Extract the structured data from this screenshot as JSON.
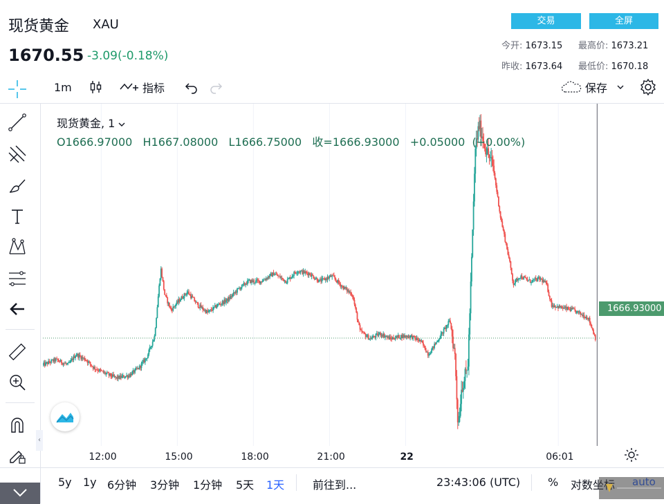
{
  "header": {
    "title": "现货黄金",
    "symbol": "XAU",
    "price": "1670.55",
    "change": "-3.09(-0.18%)",
    "trade_button": "交易",
    "fullscreen_button": "全屏",
    "stats": {
      "open_label": "今开:",
      "open_value": "1673.15",
      "high_label": "最高价:",
      "high_value": "1673.21",
      "prev_close_label": "昨收:",
      "prev_close_value": "1673.64",
      "low_label": "最低价:",
      "low_value": "1670.18"
    }
  },
  "toolbar": {
    "interval": "1m",
    "indicators_label": "指标",
    "save_label": "保存"
  },
  "legend": {
    "name": "现货黄金, 1",
    "ohlc": "O1666.97000   H1667.08000   L1666.75000   收=1666.93000   +0.05000  (+0.00%)"
  },
  "chart_data": {
    "type": "candlestick",
    "last_price_label": "1666.93000",
    "last_price": 1666.93,
    "x_ticks": [
      "12:00",
      "15:00",
      "18:00",
      "21:00",
      "22",
      "06:01"
    ],
    "x_tick_positions_hours": [
      12,
      15,
      18,
      21,
      24,
      30.02
    ],
    "x_range_hours": [
      9.7,
      31.65
    ],
    "y_range": [
      1662.8,
      1675.9
    ],
    "grid": true,
    "crosshair_hour": 31.55,
    "price_path": [
      [
        9.7,
        1665.9
      ],
      [
        10.2,
        1666.1
      ],
      [
        10.7,
        1665.9
      ],
      [
        11.0,
        1666.3
      ],
      [
        11.4,
        1666.1
      ],
      [
        11.7,
        1665.8
      ],
      [
        12.1,
        1665.6
      ],
      [
        12.6,
        1665.4
      ],
      [
        13.1,
        1665.5
      ],
      [
        13.5,
        1665.8
      ],
      [
        13.8,
        1666.2
      ],
      [
        14.1,
        1667.0
      ],
      [
        14.35,
        1669.6
      ],
      [
        14.5,
        1668.6
      ],
      [
        14.75,
        1668.0
      ],
      [
        15.1,
        1668.4
      ],
      [
        15.4,
        1668.7
      ],
      [
        15.8,
        1668.2
      ],
      [
        16.2,
        1667.9
      ],
      [
        16.6,
        1668.2
      ],
      [
        17.0,
        1668.4
      ],
      [
        17.4,
        1668.8
      ],
      [
        17.8,
        1669.1
      ],
      [
        18.3,
        1669.1
      ],
      [
        18.8,
        1669.4
      ],
      [
        19.3,
        1669.1
      ],
      [
        19.7,
        1669.5
      ],
      [
        20.2,
        1669.4
      ],
      [
        20.6,
        1669.1
      ],
      [
        21.1,
        1669.3
      ],
      [
        21.5,
        1668.9
      ],
      [
        21.9,
        1668.6
      ],
      [
        22.2,
        1667.2
      ],
      [
        22.6,
        1666.9
      ],
      [
        23.0,
        1667.1
      ],
      [
        23.4,
        1666.9
      ],
      [
        23.8,
        1667.0
      ],
      [
        24.2,
        1667.0
      ],
      [
        24.6,
        1666.8
      ],
      [
        24.9,
        1666.3
      ],
      [
        25.3,
        1666.9
      ],
      [
        25.75,
        1667.6
      ],
      [
        25.95,
        1666.2
      ],
      [
        26.07,
        1663.5
      ],
      [
        26.2,
        1665.0
      ],
      [
        26.45,
        1665.8
      ],
      [
        26.6,
        1669.8
      ],
      [
        26.75,
        1674.2
      ],
      [
        26.9,
        1675.1
      ],
      [
        27.15,
        1674.2
      ],
      [
        27.45,
        1673.5
      ],
      [
        27.75,
        1671.5
      ],
      [
        28.05,
        1670.1
      ],
      [
        28.25,
        1669.0
      ],
      [
        28.5,
        1669.3
      ],
      [
        28.9,
        1669.1
      ],
      [
        29.3,
        1669.2
      ],
      [
        29.55,
        1669.0
      ],
      [
        29.75,
        1668.2
      ],
      [
        30.1,
        1668.1
      ],
      [
        30.6,
        1668.0
      ],
      [
        31.0,
        1667.8
      ],
      [
        31.2,
        1667.7
      ],
      [
        31.35,
        1667.3
      ],
      [
        31.48,
        1666.93
      ]
    ]
  },
  "bottom": {
    "ranges": [
      "5y",
      "1y",
      "6分钟",
      "3分钟",
      "1分钟",
      "5天",
      "1天"
    ],
    "active_range": "1天",
    "goto": "前往到...",
    "time": "23:43:06 (UTC)",
    "percent": "%",
    "log_scale": "对数坐标",
    "auto": "auto"
  },
  "colors": {
    "up": "#26a69a",
    "down": "#ef5350",
    "accent": "#2cb7e6",
    "price_tag": "#4c9a6d"
  }
}
